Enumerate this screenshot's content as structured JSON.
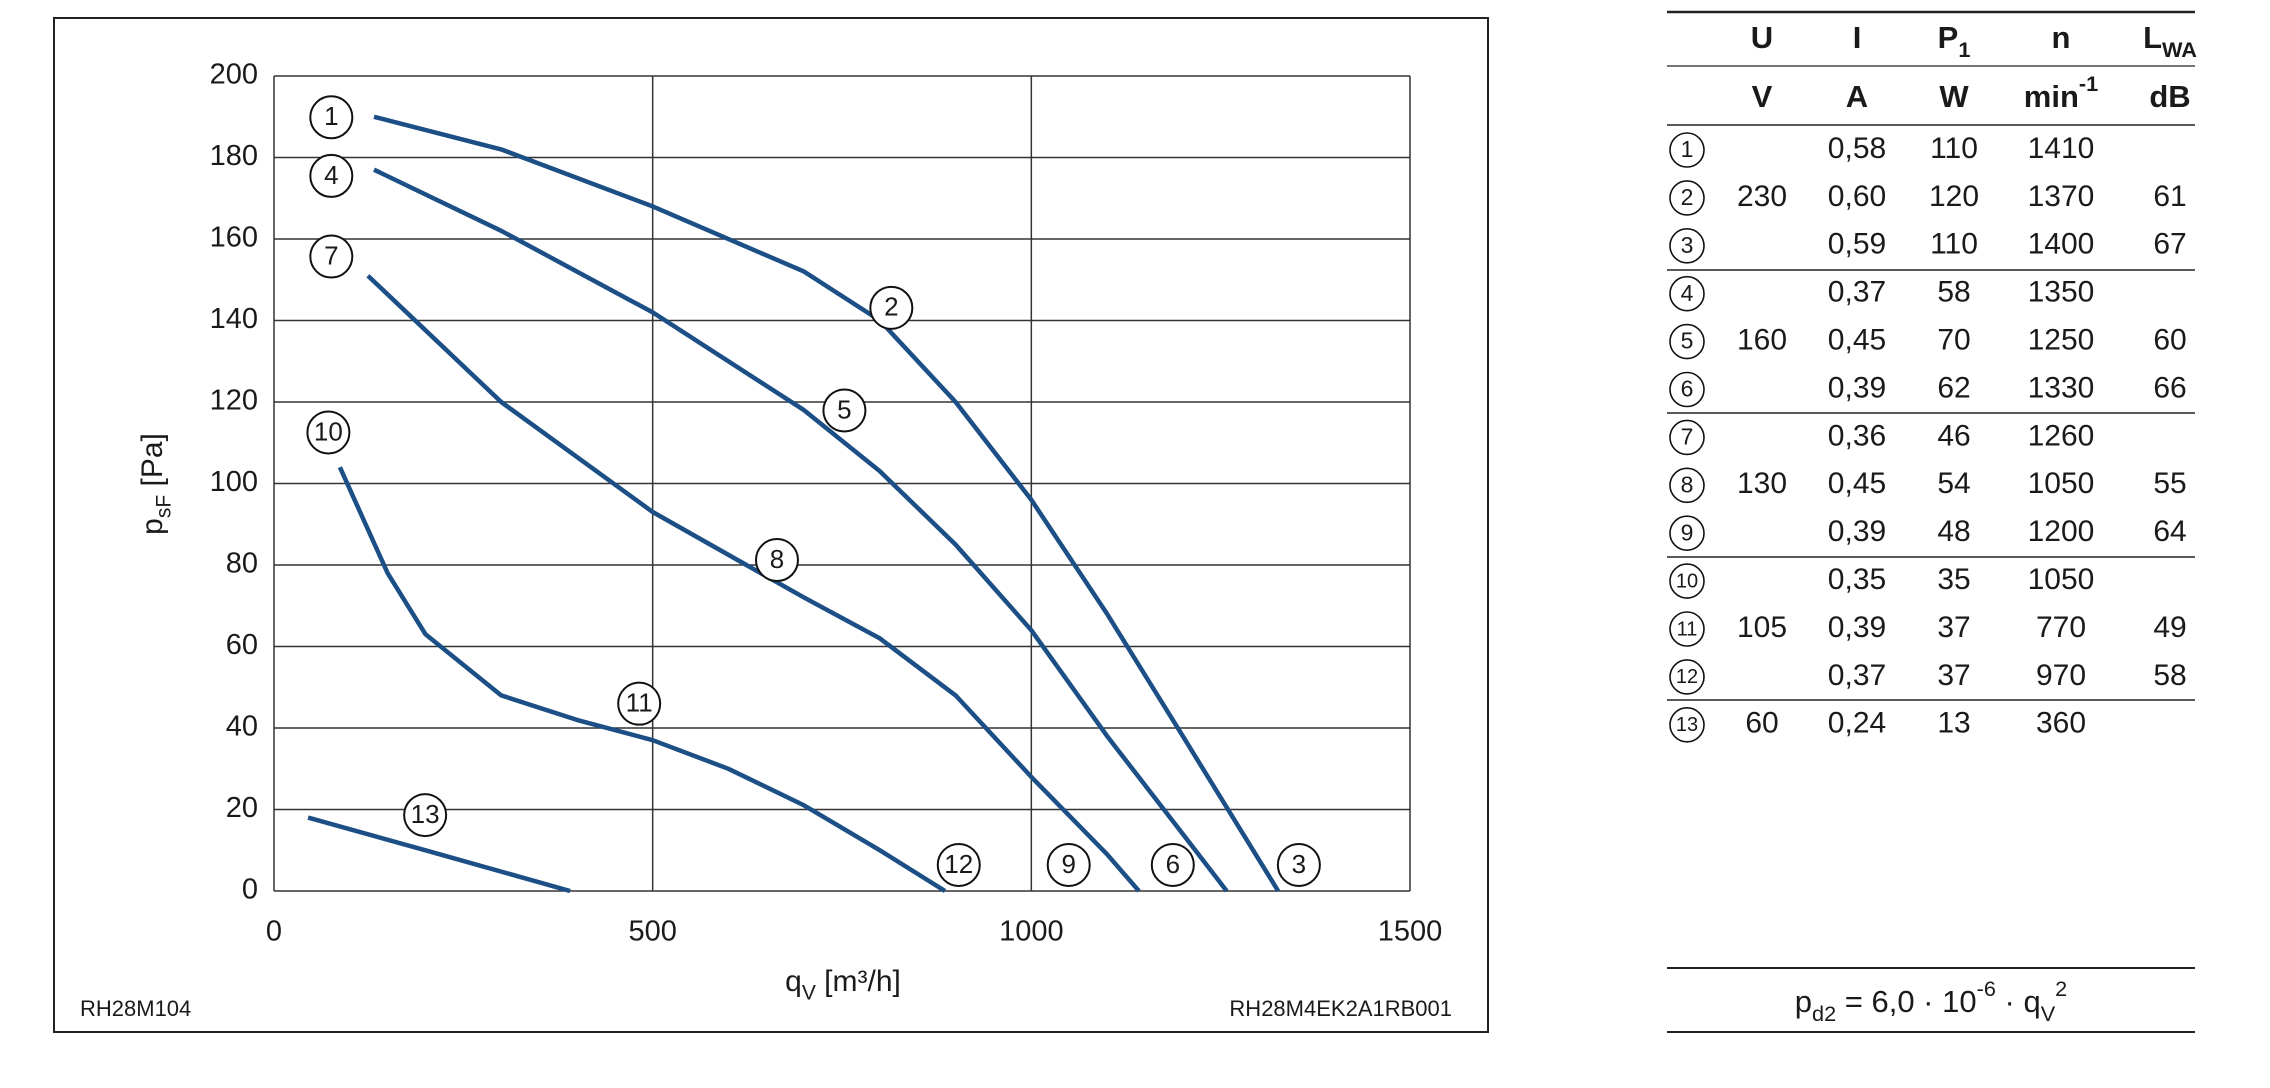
{
  "chart_data": {
    "type": "line",
    "x_label": [
      {
        "text": "q"
      },
      {
        "sub": "V"
      },
      {
        "text": " [m³/h]"
      }
    ],
    "y_label": [
      {
        "text": "p"
      },
      {
        "sub": "sF"
      },
      {
        "text": " [Pa]"
      }
    ],
    "xlim": [
      0,
      1500
    ],
    "xticks": [
      0,
      500,
      1000,
      1500
    ],
    "ylim": [
      0,
      200
    ],
    "yticks": [
      0,
      20,
      40,
      60,
      80,
      100,
      120,
      140,
      160,
      180,
      200
    ],
    "grid": true,
    "color": "#1b4f86",
    "footer_left": "RH28M104",
    "footer_right": "RH28M4EK2A1RB001",
    "series": [
      {
        "labels": [
          "1",
          "2",
          "3"
        ],
        "x": [
          132,
          300,
          500,
          700,
          800,
          900,
          1000,
          1100,
          1200,
          1326
        ],
        "values": [
          190,
          182,
          168,
          152,
          140,
          120,
          96,
          68,
          38,
          0
        ]
      },
      {
        "labels": [
          "4",
          "5",
          "6"
        ],
        "x": [
          132,
          300,
          500,
          700,
          800,
          900,
          1000,
          1100,
          1200,
          1258
        ],
        "values": [
          177,
          162,
          142,
          118,
          103,
          85,
          64,
          38,
          14,
          0
        ]
      },
      {
        "labels": [
          "7",
          "8",
          "9"
        ],
        "x": [
          124,
          300,
          500,
          700,
          800,
          900,
          1000,
          1100,
          1142
        ],
        "values": [
          151,
          120,
          93,
          72,
          62,
          48,
          28,
          9,
          0
        ]
      },
      {
        "labels": [
          "10",
          "11",
          "12"
        ],
        "x": [
          87,
          150,
          200,
          300,
          400,
          500,
          600,
          700,
          800,
          886
        ],
        "values": [
          104,
          78,
          63,
          48,
          42,
          37,
          30,
          21,
          10,
          0
        ]
      },
      {
        "labels": [
          "13"
        ],
        "x": [
          45,
          200,
          391
        ],
        "values": [
          18,
          10,
          0
        ]
      }
    ]
  },
  "table": {
    "header": [
      [
        {
          "text": "U"
        }
      ],
      [
        {
          "text": "I"
        }
      ],
      [
        {
          "text": "P"
        },
        {
          "sub": "1"
        }
      ],
      [
        {
          "text": "n"
        }
      ],
      [
        {
          "text": "L"
        },
        {
          "sub": "WA"
        }
      ]
    ],
    "units": [
      [
        {
          "text": "V"
        }
      ],
      [
        {
          "text": "A"
        }
      ],
      [
        {
          "text": "W"
        }
      ],
      [
        {
          "text": "min"
        },
        {
          "sup": "-1"
        }
      ],
      [
        {
          "text": "dB"
        }
      ]
    ],
    "rows": [
      [
        "1",
        null,
        "0,58",
        "110",
        "1410",
        null
      ],
      [
        "2",
        "230",
        "0,60",
        "120",
        "1370",
        "61"
      ],
      [
        "3",
        null,
        "0,59",
        "110",
        "1400",
        "67"
      ],
      [
        "4",
        null,
        "0,37",
        "58",
        "1350",
        null
      ],
      [
        "5",
        "160",
        "0,45",
        "70",
        "1250",
        "60"
      ],
      [
        "6",
        null,
        "0,39",
        "62",
        "1330",
        "66"
      ],
      [
        "7",
        null,
        "0,36",
        "46",
        "1260",
        null
      ],
      [
        "8",
        "130",
        "0,45",
        "54",
        "1050",
        "55"
      ],
      [
        "9",
        null,
        "0,39",
        "48",
        "1200",
        "64"
      ],
      [
        "10",
        null,
        "0,35",
        "35",
        "1050",
        null
      ],
      [
        "11",
        "105",
        "0,39",
        "37",
        "770",
        "49"
      ],
      [
        "12",
        null,
        "0,37",
        "37",
        "970",
        "58"
      ],
      [
        "13",
        "60",
        "0,24",
        "13",
        "360",
        null
      ]
    ]
  },
  "formula": [
    {
      "text": "p"
    },
    {
      "sub": "d2"
    },
    {
      "text": " = 6,0 · 10"
    },
    {
      "sup": "-6"
    },
    {
      "text": " · q"
    },
    {
      "sub": "V"
    },
    {
      "sup": "2"
    }
  ]
}
